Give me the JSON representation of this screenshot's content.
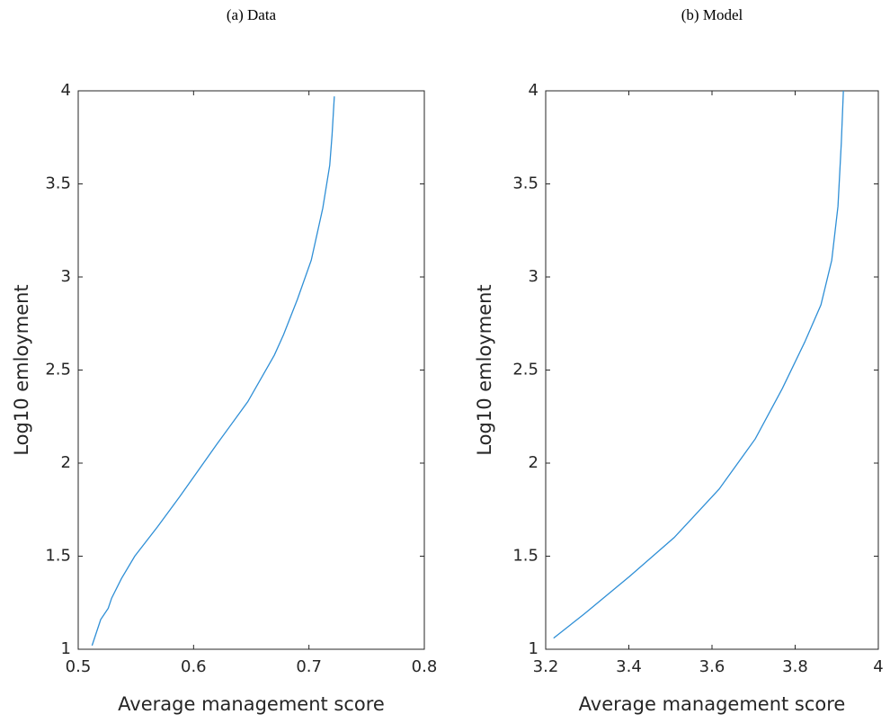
{
  "chart_data": [
    {
      "type": "line",
      "title": "(a) Data",
      "xlabel": "Average management score",
      "ylabel": "Log10 emloyment",
      "x": [
        0.512,
        0.5195,
        0.526,
        0.529,
        0.5375,
        0.549,
        0.569,
        0.588,
        0.62,
        0.647,
        0.67,
        0.678,
        0.69,
        0.702,
        0.712,
        0.718,
        0.72,
        0.722
      ],
      "series": [
        {
          "color": "#2f8fd6",
          "values": [
            1.02,
            1.16,
            1.22,
            1.275,
            1.38,
            1.5,
            1.66,
            1.82,
            2.1,
            2.33,
            2.58,
            2.69,
            2.88,
            3.09,
            3.37,
            3.6,
            3.76,
            3.97
          ]
        }
      ],
      "xlim": [
        0.5,
        0.8
      ],
      "xticks": [
        0.5,
        0.6,
        0.7,
        0.8
      ],
      "ylim": [
        1,
        4
      ],
      "yticks": [
        1,
        1.5,
        2,
        2.5,
        3,
        3.5,
        4
      ],
      "grid": false
    },
    {
      "type": "line",
      "title": "(b) Model",
      "xlabel": "Average management score",
      "ylabel": "Log10 emloyment",
      "x": [
        3.219,
        3.293,
        3.401,
        3.509,
        3.617,
        3.704,
        3.769,
        3.823,
        3.862,
        3.888,
        3.903,
        3.911,
        3.916
      ],
      "series": [
        {
          "color": "#2f8fd6",
          "values": [
            1.06,
            1.19,
            1.39,
            1.6,
            1.86,
            2.13,
            2.4,
            2.65,
            2.85,
            3.09,
            3.38,
            3.72,
            4.0
          ]
        }
      ],
      "xlim": [
        3.2,
        4
      ],
      "xticks": [
        3.2,
        3.4,
        3.6,
        3.8,
        4
      ],
      "ylim": [
        1,
        4
      ],
      "yticks": [
        1,
        1.5,
        2,
        2.5,
        3,
        3.5,
        4
      ],
      "grid": false
    }
  ]
}
